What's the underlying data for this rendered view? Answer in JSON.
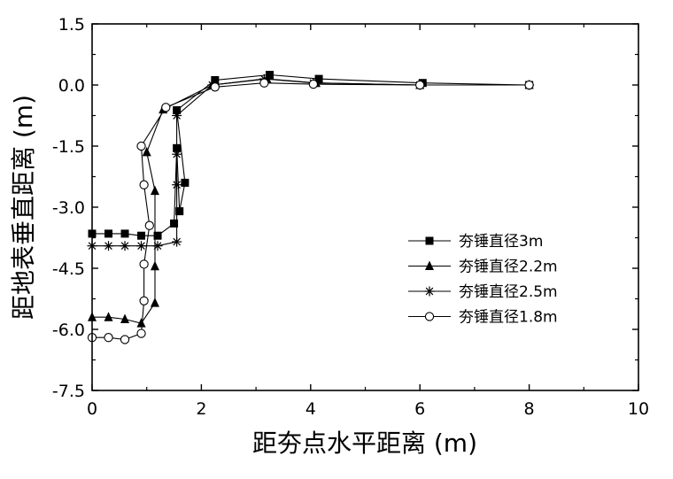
{
  "chart_data": {
    "type": "line",
    "title": "",
    "xlabel": "距夯点水平距离 (m)",
    "ylabel": "距地表垂直距离 (m)",
    "xlim": [
      0,
      10
    ],
    "ylim": [
      -7.5,
      1.5
    ],
    "xticks": [
      0,
      2,
      4,
      6,
      8,
      10
    ],
    "yticks": [
      1.5,
      0.0,
      -1.5,
      -3.0,
      -4.5,
      -6.0,
      -7.5
    ],
    "x_tick_labels": [
      "0",
      "2",
      "4",
      "6",
      "8",
      "10"
    ],
    "y_tick_labels": [
      "1.5",
      "0.0",
      "-1.5",
      "-3.0",
      "-4.5",
      "-6.0",
      "-7.5"
    ],
    "grid": false,
    "legend_position": "right",
    "series": [
      {
        "name": "夯锤直径3m",
        "marker": "filled-square",
        "x": [
          0.0,
          0.3,
          0.6,
          0.9,
          1.2,
          1.5,
          1.55,
          1.6,
          1.7,
          1.55,
          2.25,
          3.25,
          4.15,
          6.05,
          8.0
        ],
        "y": [
          -3.65,
          -3.65,
          -3.65,
          -3.7,
          -3.7,
          -3.4,
          -1.55,
          -3.1,
          -2.4,
          -0.62,
          0.12,
          0.25,
          0.15,
          0.05,
          0.0
        ]
      },
      {
        "name": "夯锤直径2.2m",
        "marker": "filled-triangle",
        "x": [
          0.0,
          0.3,
          0.6,
          0.9,
          1.15,
          1.15,
          1.15,
          1.0,
          1.3,
          2.2,
          3.2,
          4.1,
          6.0,
          8.0
        ],
        "y": [
          -5.7,
          -5.7,
          -5.75,
          -5.85,
          -5.35,
          -4.45,
          -2.6,
          -1.65,
          -0.6,
          0.0,
          0.15,
          0.05,
          0.0,
          0.0
        ]
      },
      {
        "name": "夯锤直径2.5m",
        "marker": "asterisk",
        "x": [
          0.0,
          0.3,
          0.6,
          0.9,
          1.2,
          1.55,
          1.55,
          1.55,
          1.55,
          2.2,
          3.15,
          4.05,
          6.0,
          8.0
        ],
        "y": [
          -3.95,
          -3.95,
          -3.95,
          -3.95,
          -3.95,
          -3.85,
          -2.45,
          -1.7,
          -0.75,
          0.0,
          0.15,
          0.05,
          0.0,
          0.0
        ]
      },
      {
        "name": "夯锤直径1.8m",
        "marker": "open-circle",
        "x": [
          0.0,
          0.3,
          0.6,
          0.9,
          0.95,
          0.95,
          1.05,
          0.95,
          0.9,
          1.35,
          2.25,
          3.15,
          4.05,
          6.0,
          8.0
        ],
        "y": [
          -6.2,
          -6.2,
          -6.25,
          -6.1,
          -5.3,
          -4.4,
          -3.45,
          -2.45,
          -1.5,
          -0.55,
          -0.05,
          0.05,
          0.02,
          0.0,
          0.0
        ]
      }
    ]
  }
}
